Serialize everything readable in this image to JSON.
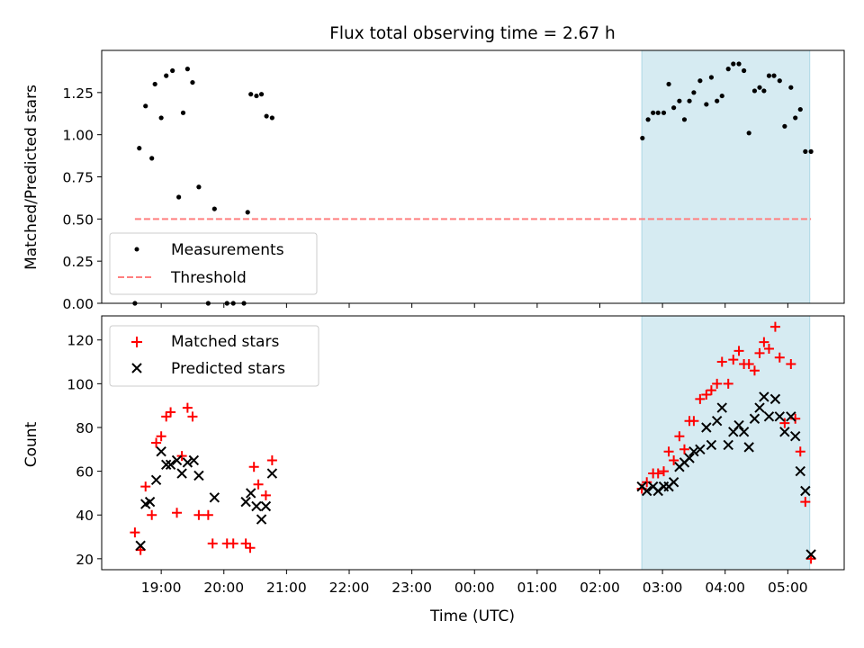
{
  "chart_data": {
    "type": "scatter",
    "title": "Flux total observing time = 2.67 h",
    "xlabel": "Time (UTC)",
    "x_units": "hours since 19:00 UTC",
    "xlim": [
      -0.95,
      10.9
    ],
    "x_tick_values": [
      0,
      1,
      2,
      3,
      4,
      5,
      6,
      7,
      8,
      9,
      10
    ],
    "x_tick_labels": [
      "19:00",
      "20:00",
      "21:00",
      "22:00",
      "23:00",
      "00:00",
      "01:00",
      "02:00",
      "03:00",
      "04:00",
      "05:00"
    ],
    "highlight_span": [
      7.67,
      10.35
    ],
    "colors": {
      "measurements": "#000000",
      "threshold": "#ff7f7f",
      "matched": "#ff0000",
      "predicted": "#000000",
      "span_fill": "#add8e6"
    },
    "panels": [
      {
        "ylabel": "Matched/Predicted stars",
        "ylim": [
          0,
          1.5
        ],
        "y_ticks": [
          0.0,
          0.25,
          0.5,
          0.75,
          1.0,
          1.25
        ],
        "y_tick_labels": [
          "0.00",
          "0.25",
          "0.50",
          "0.75",
          "1.00",
          "1.25"
        ],
        "legend": {
          "position": "lower-left",
          "entries": [
            "Measurements",
            "Threshold"
          ]
        },
        "threshold": {
          "name": "Threshold",
          "y": 0.5
        },
        "series": [
          {
            "name": "Measurements",
            "marker": "dot",
            "points": [
              [
                -0.42,
                0.0
              ],
              [
                -0.35,
                0.92
              ],
              [
                -0.25,
                1.17
              ],
              [
                -0.15,
                0.86
              ],
              [
                -0.1,
                1.3
              ],
              [
                0.0,
                1.1
              ],
              [
                0.08,
                1.35
              ],
              [
                0.18,
                1.38
              ],
              [
                0.28,
                0.63
              ],
              [
                0.35,
                1.13
              ],
              [
                0.42,
                1.39
              ],
              [
                0.5,
                1.31
              ],
              [
                0.6,
                0.69
              ],
              [
                0.75,
                0.0
              ],
              [
                0.85,
                0.56
              ],
              [
                1.05,
                0.0
              ],
              [
                1.15,
                0.0
              ],
              [
                1.32,
                0.0
              ],
              [
                1.38,
                0.54
              ],
              [
                1.43,
                1.24
              ],
              [
                1.52,
                1.23
              ],
              [
                1.6,
                1.24
              ],
              [
                1.68,
                1.11
              ],
              [
                1.77,
                1.1
              ],
              [
                7.68,
                0.98
              ],
              [
                7.77,
                1.09
              ],
              [
                7.85,
                1.13
              ],
              [
                7.93,
                1.13
              ],
              [
                8.02,
                1.13
              ],
              [
                8.1,
                1.3
              ],
              [
                8.18,
                1.16
              ],
              [
                8.27,
                1.2
              ],
              [
                8.35,
                1.09
              ],
              [
                8.43,
                1.2
              ],
              [
                8.5,
                1.25
              ],
              [
                8.6,
                1.32
              ],
              [
                8.7,
                1.18
              ],
              [
                8.78,
                1.34
              ],
              [
                8.87,
                1.2
              ],
              [
                8.95,
                1.23
              ],
              [
                9.05,
                1.39
              ],
              [
                9.13,
                1.42
              ],
              [
                9.22,
                1.42
              ],
              [
                9.3,
                1.38
              ],
              [
                9.38,
                1.01
              ],
              [
                9.47,
                1.26
              ],
              [
                9.55,
                1.28
              ],
              [
                9.62,
                1.26
              ],
              [
                9.7,
                1.35
              ],
              [
                9.78,
                1.35
              ],
              [
                9.87,
                1.32
              ],
              [
                9.95,
                1.05
              ],
              [
                10.05,
                1.28
              ],
              [
                10.12,
                1.1
              ],
              [
                10.2,
                1.15
              ],
              [
                10.28,
                0.9
              ],
              [
                10.37,
                0.9
              ]
            ]
          }
        ]
      },
      {
        "ylabel": "Count",
        "ylim": [
          15,
          131
        ],
        "y_ticks": [
          20,
          40,
          60,
          80,
          100,
          120
        ],
        "y_tick_labels": [
          "20",
          "40",
          "60",
          "80",
          "100",
          "120"
        ],
        "legend": {
          "position": "top-left",
          "entries": [
            "Matched stars",
            "Predicted stars"
          ]
        },
        "series": [
          {
            "name": "Matched stars",
            "marker": "plus",
            "points": [
              [
                -0.42,
                32
              ],
              [
                -0.33,
                24
              ],
              [
                -0.25,
                53
              ],
              [
                -0.15,
                40
              ],
              [
                -0.08,
                73
              ],
              [
                0.0,
                76
              ],
              [
                0.08,
                85
              ],
              [
                0.15,
                87
              ],
              [
                0.25,
                41
              ],
              [
                0.33,
                67
              ],
              [
                0.42,
                89
              ],
              [
                0.5,
                85
              ],
              [
                0.6,
                40
              ],
              [
                0.75,
                40
              ],
              [
                0.82,
                27
              ],
              [
                1.05,
                27
              ],
              [
                1.15,
                27
              ],
              [
                1.35,
                27
              ],
              [
                1.42,
                25
              ],
              [
                1.48,
                62
              ],
              [
                1.55,
                54
              ],
              [
                1.67,
                49
              ],
              [
                1.77,
                65
              ],
              [
                7.67,
                52
              ],
              [
                7.75,
                55
              ],
              [
                7.85,
                59
              ],
              [
                7.93,
                59
              ],
              [
                8.02,
                60
              ],
              [
                8.1,
                69
              ],
              [
                8.18,
                65
              ],
              [
                8.27,
                76
              ],
              [
                8.35,
                70
              ],
              [
                8.43,
                83
              ],
              [
                8.5,
                83
              ],
              [
                8.6,
                93
              ],
              [
                8.7,
                95
              ],
              [
                8.78,
                97
              ],
              [
                8.87,
                100
              ],
              [
                8.95,
                110
              ],
              [
                9.05,
                100
              ],
              [
                9.13,
                111
              ],
              [
                9.22,
                115
              ],
              [
                9.3,
                109
              ],
              [
                9.38,
                109
              ],
              [
                9.47,
                106
              ],
              [
                9.55,
                114
              ],
              [
                9.62,
                119
              ],
              [
                9.7,
                116
              ],
              [
                9.8,
                126
              ],
              [
                9.87,
                112
              ],
              [
                9.95,
                82
              ],
              [
                10.05,
                109
              ],
              [
                10.12,
                84
              ],
              [
                10.2,
                69
              ],
              [
                10.28,
                46
              ],
              [
                10.37,
                20
              ]
            ]
          },
          {
            "name": "Predicted stars",
            "marker": "x",
            "points": [
              [
                -0.33,
                26
              ],
              [
                -0.25,
                45
              ],
              [
                -0.18,
                46
              ],
              [
                -0.08,
                56
              ],
              [
                0.0,
                69
              ],
              [
                0.08,
                63
              ],
              [
                0.15,
                63
              ],
              [
                0.25,
                65
              ],
              [
                0.33,
                59
              ],
              [
                0.42,
                64
              ],
              [
                0.52,
                65
              ],
              [
                0.6,
                58
              ],
              [
                0.85,
                48
              ],
              [
                1.35,
                46
              ],
              [
                1.43,
                50
              ],
              [
                1.52,
                44
              ],
              [
                1.6,
                38
              ],
              [
                1.67,
                44
              ],
              [
                1.77,
                59
              ],
              [
                7.67,
                53
              ],
              [
                7.75,
                51
              ],
              [
                7.85,
                53
              ],
              [
                7.93,
                51
              ],
              [
                8.02,
                53
              ],
              [
                8.1,
                53
              ],
              [
                8.18,
                55
              ],
              [
                8.27,
                62
              ],
              [
                8.35,
                64
              ],
              [
                8.43,
                66
              ],
              [
                8.5,
                69
              ],
              [
                8.6,
                70
              ],
              [
                8.7,
                80
              ],
              [
                8.78,
                72
              ],
              [
                8.87,
                83
              ],
              [
                8.95,
                89
              ],
              [
                9.05,
                72
              ],
              [
                9.13,
                78
              ],
              [
                9.22,
                81
              ],
              [
                9.3,
                78
              ],
              [
                9.38,
                71
              ],
              [
                9.47,
                84
              ],
              [
                9.55,
                89
              ],
              [
                9.62,
                94
              ],
              [
                9.7,
                85
              ],
              [
                9.8,
                93
              ],
              [
                9.87,
                85
              ],
              [
                9.95,
                78
              ],
              [
                10.05,
                85
              ],
              [
                10.12,
                76
              ],
              [
                10.2,
                60
              ],
              [
                10.28,
                51
              ],
              [
                10.37,
                22
              ]
            ]
          }
        ]
      }
    ]
  }
}
